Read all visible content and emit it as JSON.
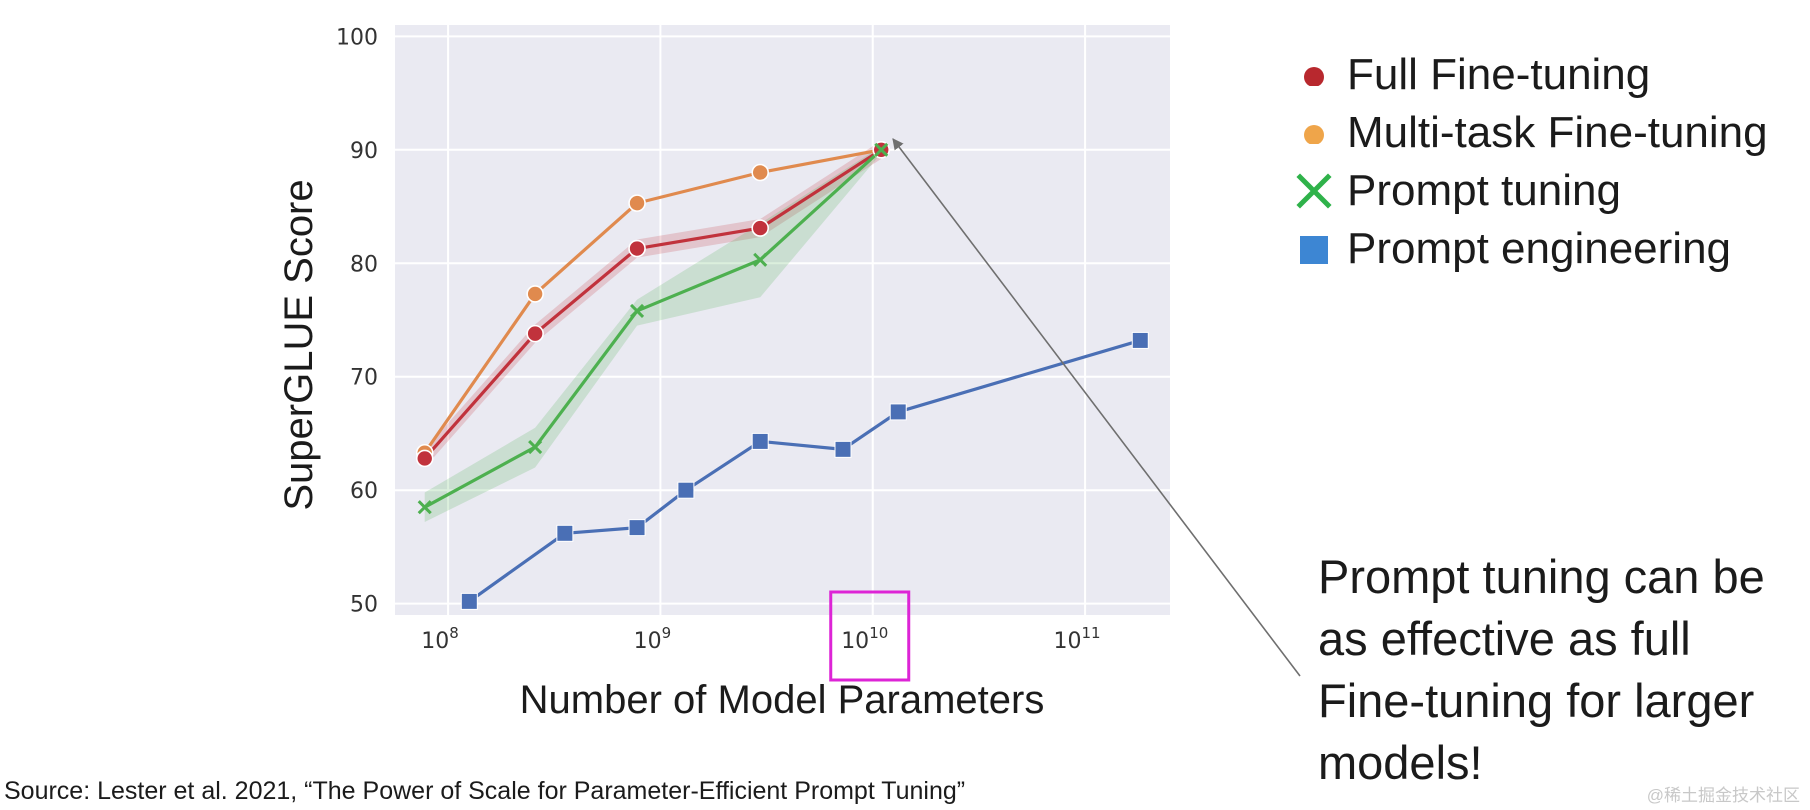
{
  "chart_data": {
    "type": "line",
    "xscale": "log",
    "xlabel": "Number of Model Parameters",
    "ylabel": "SuperGLUE Score",
    "ylim": [
      49,
      101
    ],
    "xlim_log10": [
      7.75,
      11.4
    ],
    "yticks": [
      50,
      60,
      70,
      80,
      90,
      100
    ],
    "xticks": [
      {
        "exp": 8,
        "base": "10",
        "sup": "8"
      },
      {
        "exp": 9,
        "base": "10",
        "sup": "9"
      },
      {
        "exp": 10,
        "base": "10",
        "sup": "10"
      },
      {
        "exp": 11,
        "base": "10",
        "sup": "11"
      }
    ],
    "highlight_xtick_exp": 10,
    "grid": true,
    "series": [
      {
        "name": "Multi-task Fine-tuning",
        "color": "#e08a4e",
        "marker": "circle",
        "log10_x": [
          7.89,
          8.41,
          8.89,
          9.47,
          10.04
        ],
        "y": [
          63.3,
          77.3,
          85.3,
          88.0,
          90.0
        ]
      },
      {
        "name": "Full Fine-tuning",
        "color": "#c1323c",
        "marker": "circle",
        "log10_x": [
          7.89,
          8.41,
          8.89,
          9.47,
          10.04
        ],
        "y": [
          62.8,
          73.8,
          81.3,
          83.1,
          90.0
        ],
        "band": 0.8
      },
      {
        "name": "Prompt tuning",
        "color": "#4db04f",
        "marker": "x",
        "log10_x": [
          7.89,
          8.41,
          8.89,
          9.47,
          10.04
        ],
        "y": [
          58.5,
          63.8,
          75.8,
          80.3,
          90.0
        ],
        "band_upper": [
          59.8,
          65.5,
          76.8,
          83.5,
          90.3
        ],
        "band_lower": [
          57.2,
          62.0,
          74.5,
          77.0,
          89.7
        ]
      },
      {
        "name": "Prompt engineering",
        "color": "#4a6fb5",
        "marker": "square",
        "log10_x": [
          8.1,
          8.55,
          8.89,
          9.12,
          9.47,
          9.86,
          10.12,
          11.26
        ],
        "y": [
          50.2,
          56.2,
          56.7,
          60.0,
          64.3,
          63.6,
          66.9,
          73.2
        ]
      }
    ]
  },
  "legend": [
    {
      "label": "Full Fine-tuning",
      "marker": "circle",
      "color": "#b8282e"
    },
    {
      "label": "Multi-task Fine-tuning",
      "marker": "circle",
      "color": "#efa54a"
    },
    {
      "label": "Prompt tuning",
      "marker": "x",
      "color": "#2fb24a"
    },
    {
      "label": "Prompt engineering",
      "marker": "square",
      "color": "#3d86d3"
    }
  ],
  "annotation": {
    "text": "Prompt tuning can be as effective as full Fine-tuning for larger models!"
  },
  "source": "Source:  Lester et al. 2021, “The Power of Scale for Parameter-Efficient Prompt Tuning”",
  "watermark": "@稀土掘金技术社区",
  "colors": {
    "plot_background": "#eaeaf2",
    "grid": "#ffffff",
    "highlight_box": "#dd24d6",
    "arrow": "#6f6f6f"
  }
}
